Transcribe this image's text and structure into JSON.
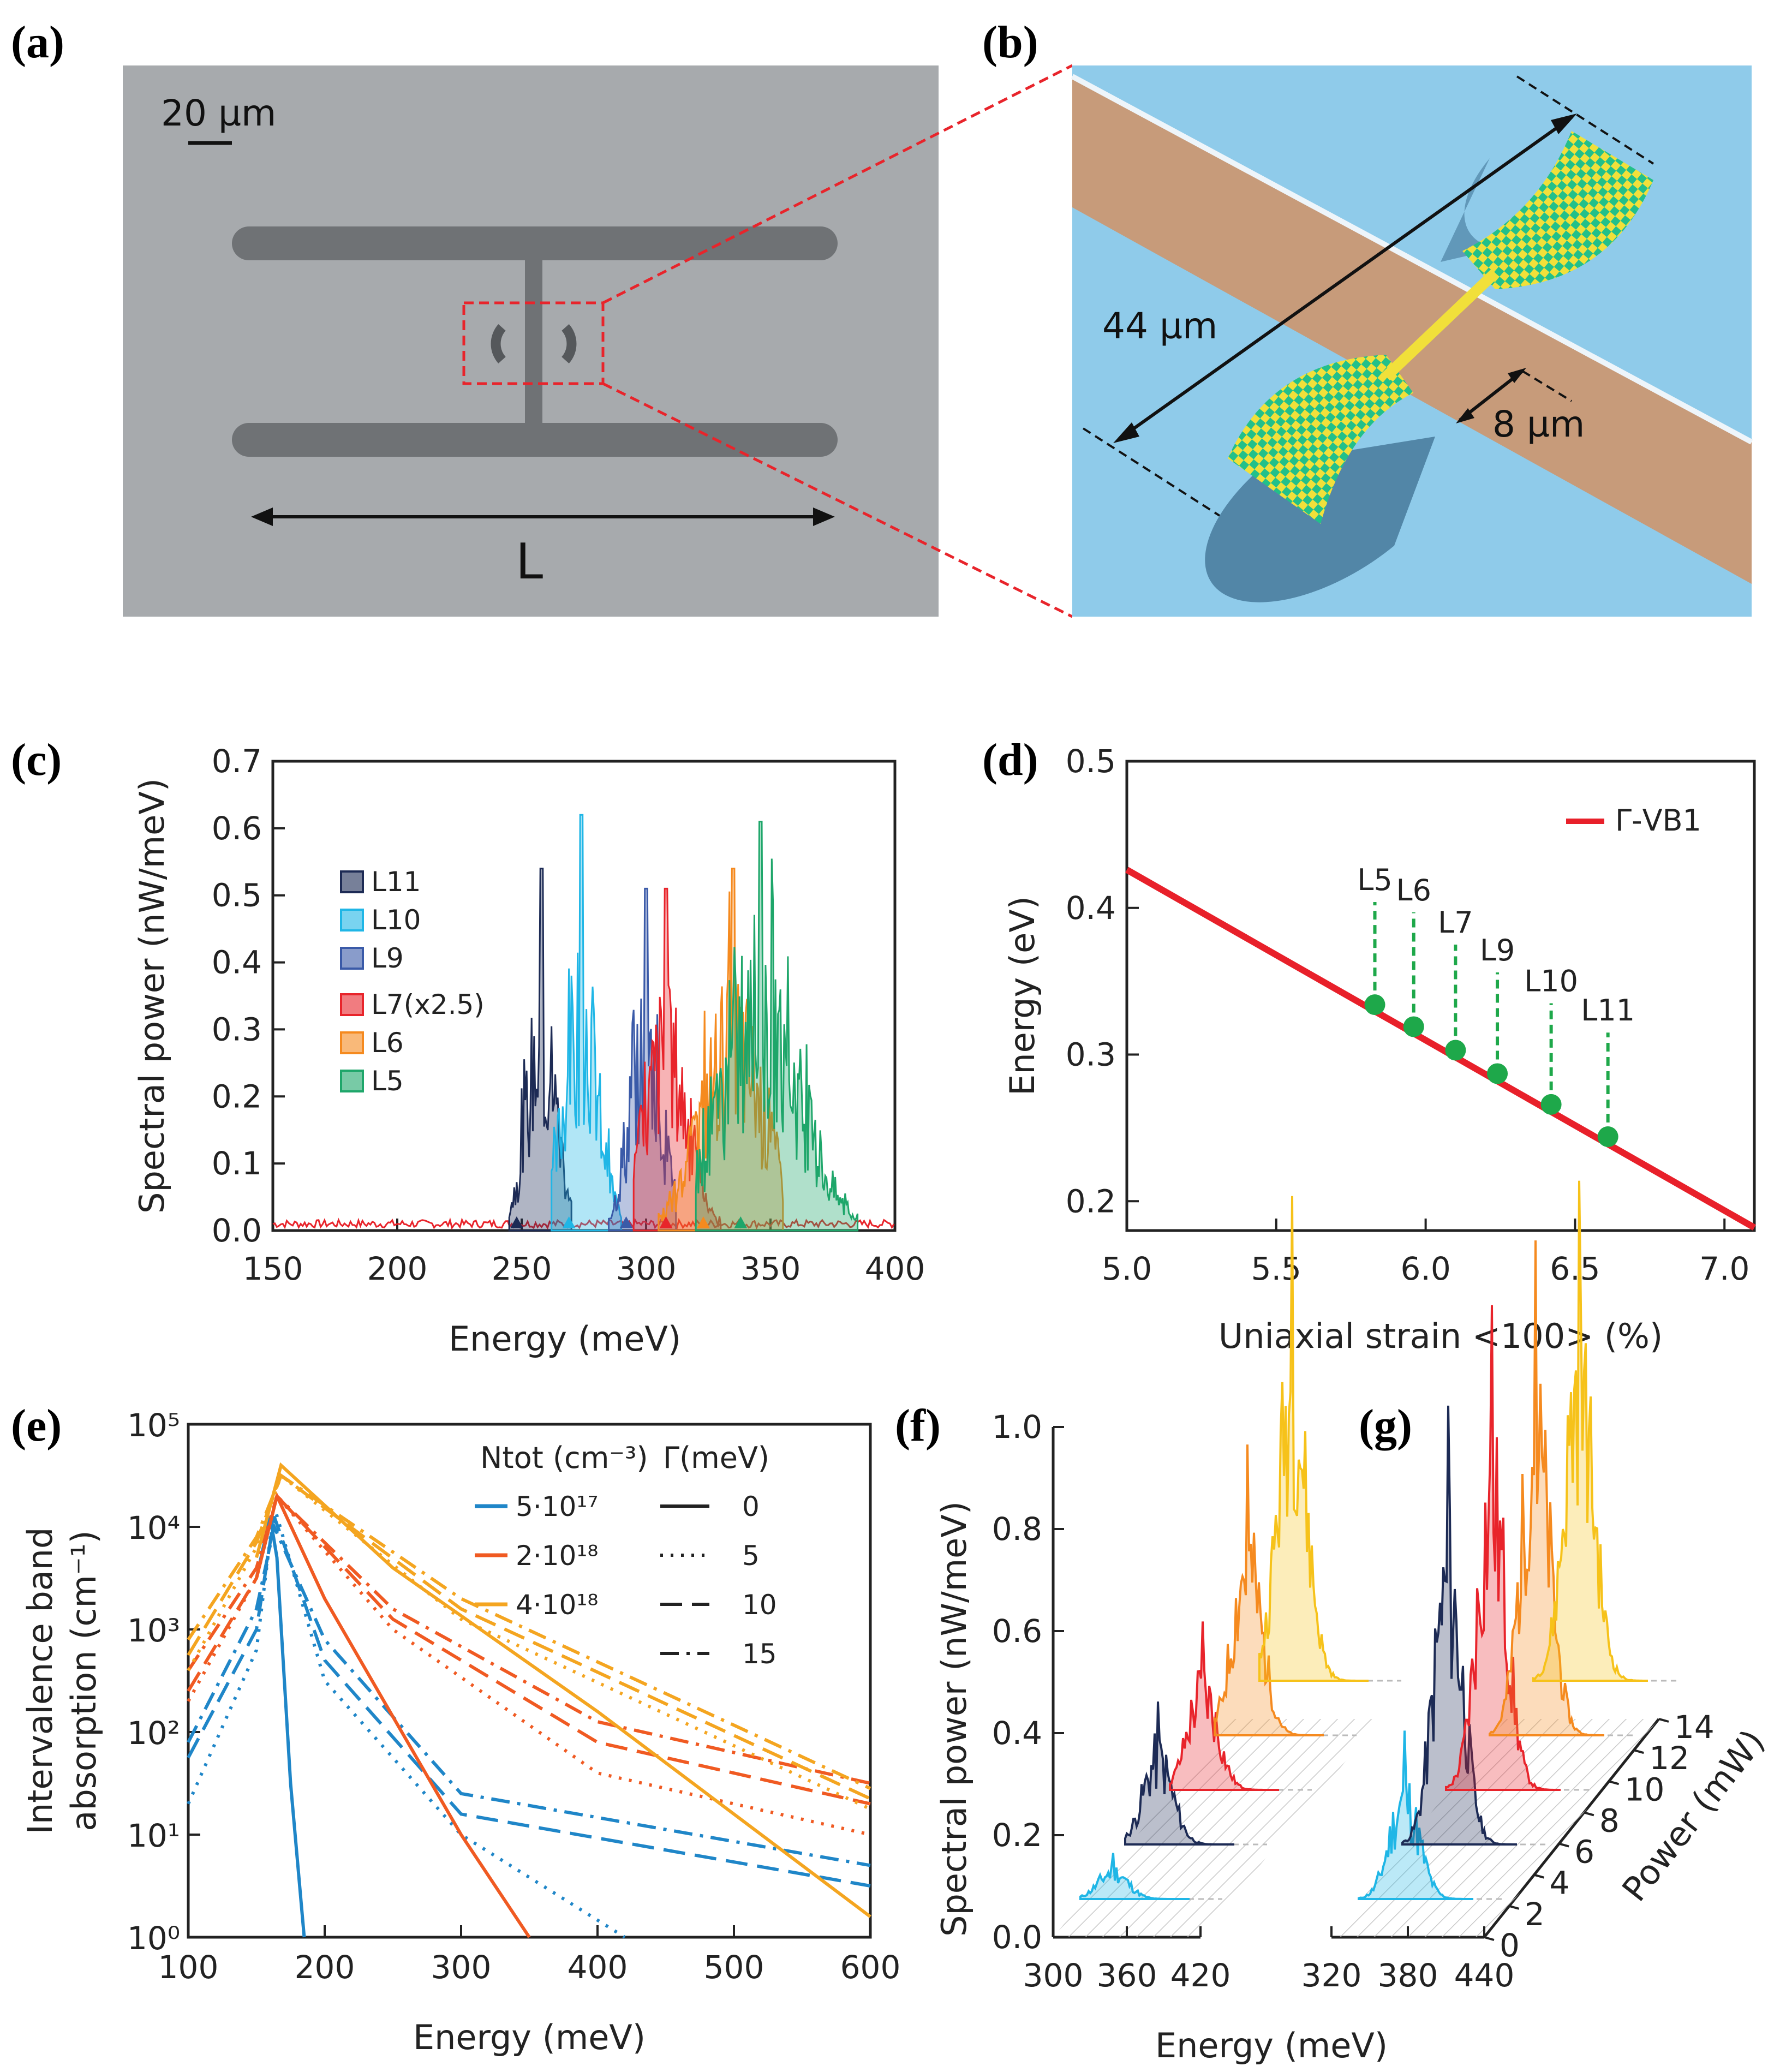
{
  "panel_labels": {
    "a": "(a)",
    "b": "(b)",
    "c": "(c)",
    "d": "(d)",
    "e": "(e)",
    "f": "(f)",
    "g": "(g)"
  },
  "colors": {
    "L11": "#1d2b55",
    "L10": "#1fb6e6",
    "L9": "#3a5aa8",
    "L7": "#e8242b",
    "L6": "#f58a1f",
    "L5": "#1ea66a",
    "red_line": "#e8202a",
    "green_dot": "#1ea84a",
    "e_blue": "#1f86c8",
    "e_red": "#f05a22",
    "e_orange": "#f4a520"
  },
  "panel_a": {
    "scale_label": "20 µm",
    "length_label": "L"
  },
  "panel_b": {
    "dim_long": "44 µm",
    "dim_short": "8 µm"
  },
  "chart_data": [
    {
      "id": "c",
      "type": "area",
      "xlabel": "Energy (meV)",
      "ylabel": "Spectral power (nW/meV)",
      "xlim": [
        150,
        400
      ],
      "ylim": [
        0,
        0.7
      ],
      "xticks": [
        "150",
        "200",
        "250",
        "300",
        "350",
        "400"
      ],
      "yticks": [
        "0.0",
        "0.1",
        "0.2",
        "0.3",
        "0.4",
        "0.5",
        "0.6",
        "0.7"
      ],
      "legend_group1": [
        "L11",
        "L10",
        "L9"
      ],
      "legend_group2": [
        "L7(x2.5)",
        "L6",
        "L5"
      ],
      "series": [
        {
          "name": "L11",
          "peak_energy": 258,
          "peak_value": 0.54,
          "range": [
            245,
            270
          ],
          "marker": 248
        },
        {
          "name": "L10",
          "peak_energy": 274,
          "peak_value": 0.62,
          "range": [
            262,
            290
          ],
          "marker": 269
        },
        {
          "name": "L9",
          "peak_energy": 300,
          "peak_value": 0.51,
          "range": [
            285,
            312
          ],
          "marker": 292
        },
        {
          "name": "L7(x2.5)",
          "peak_energy": 308,
          "peak_value": 0.51,
          "range": [
            295,
            330
          ],
          "marker": 308
        },
        {
          "name": "L6",
          "peak_energy": 335,
          "peak_value": 0.54,
          "range": [
            305,
            355
          ],
          "marker": 323
        },
        {
          "name": "L5",
          "peak_energy": 346,
          "peak_value": 0.61,
          "range": [
            320,
            385
          ],
          "marker": 338
        }
      ]
    },
    {
      "id": "d",
      "type": "line",
      "xlabel": "Uniaxial strain <100> (%)",
      "ylabel": "Energy (eV)",
      "xlim": [
        5.0,
        7.1
      ],
      "ylim": [
        0.18,
        0.5
      ],
      "xticks": [
        "5.0",
        "5.5",
        "6.0",
        "6.5",
        "7.0"
      ],
      "yticks": [
        "0.2",
        "0.3",
        "0.4",
        "0.5"
      ],
      "legend": "Γ-VB1",
      "line": {
        "x": [
          5.0,
          7.1
        ],
        "y": [
          0.426,
          0.182
        ]
      },
      "points": [
        {
          "label": "L5",
          "x": 5.83,
          "y": 0.334
        },
        {
          "label": "L6",
          "x": 5.96,
          "y": 0.319
        },
        {
          "label": "L7",
          "x": 6.1,
          "y": 0.303
        },
        {
          "label": "L9",
          "x": 6.24,
          "y": 0.287
        },
        {
          "label": "L10",
          "x": 6.42,
          "y": 0.266
        },
        {
          "label": "L11",
          "x": 6.61,
          "y": 0.244
        }
      ]
    },
    {
      "id": "e",
      "type": "line",
      "xlabel": "Energy (meV)",
      "ylabel_line1": "Intervalence band",
      "ylabel_line2": "absorption (cm⁻¹)",
      "xlim": [
        100,
        600
      ],
      "ylim_log10": [
        0,
        5
      ],
      "xticks": [
        "100",
        "200",
        "300",
        "400",
        "500",
        "600"
      ],
      "yticks": [
        "10⁰",
        "10¹",
        "10²",
        "10³",
        "10⁴",
        "10⁵"
      ],
      "legend_head1": "Ntot (cm⁻³)",
      "legend_head2": "Γ(meV)",
      "legend_density": [
        "5·10¹⁷",
        "2·10¹⁸",
        "4·10¹⁸"
      ],
      "legend_gamma": [
        "0",
        "5",
        "10",
        "15"
      ],
      "series": [
        {
          "density": "5·10¹⁷",
          "gamma": 0,
          "x": [
            150,
            160,
            165,
            175,
            185
          ],
          "log10y": [
            3.5,
            4.1,
            3.7,
            1.5,
            0
          ]
        },
        {
          "density": "5·10¹⁷",
          "gamma": 5,
          "x": [
            100,
            150,
            163,
            200,
            300,
            420
          ],
          "log10y": [
            1.3,
            2.8,
            4.2,
            2.5,
            1.0,
            0
          ]
        },
        {
          "density": "5·10¹⁷",
          "gamma": 10,
          "x": [
            100,
            150,
            163,
            200,
            300,
            600
          ],
          "log10y": [
            1.75,
            3.0,
            4.1,
            2.7,
            1.2,
            0.5
          ]
        },
        {
          "density": "5·10¹⁷",
          "gamma": 15,
          "x": [
            100,
            150,
            163,
            200,
            300,
            600
          ],
          "log10y": [
            1.9,
            3.2,
            4.0,
            2.9,
            1.4,
            0.7
          ]
        },
        {
          "density": "2·10¹⁸",
          "gamma": 0,
          "x": [
            150,
            165,
            200,
            300,
            350
          ],
          "log10y": [
            3.5,
            4.3,
            3.3,
            1.0,
            0
          ]
        },
        {
          "density": "2·10¹⁸",
          "gamma": 5,
          "x": [
            100,
            150,
            165,
            250,
            400,
            600
          ],
          "log10y": [
            2.3,
            3.5,
            4.3,
            3.0,
            1.6,
            1.0
          ]
        },
        {
          "density": "2·10¹⁸",
          "gamma": 10,
          "x": [
            100,
            150,
            165,
            250,
            400,
            600
          ],
          "log10y": [
            2.4,
            3.5,
            4.3,
            3.1,
            1.9,
            1.3
          ]
        },
        {
          "density": "2·10¹⁸",
          "gamma": 15,
          "x": [
            100,
            150,
            165,
            250,
            400,
            600
          ],
          "log10y": [
            2.6,
            3.6,
            4.3,
            3.2,
            2.1,
            1.5
          ]
        },
        {
          "density": "4·10¹⁸",
          "gamma": 0,
          "x": [
            150,
            168,
            250,
            400,
            600
          ],
          "log10y": [
            3.7,
            4.6,
            3.6,
            2.2,
            0.2
          ]
        },
        {
          "density": "4·10¹⁸",
          "gamma": 5,
          "x": [
            100,
            150,
            168,
            300,
            600
          ],
          "log10y": [
            2.6,
            3.8,
            4.5,
            3.1,
            1.25
          ]
        },
        {
          "density": "4·10¹⁸",
          "gamma": 10,
          "x": [
            100,
            150,
            168,
            300,
            600
          ],
          "log10y": [
            2.75,
            3.85,
            4.5,
            3.2,
            1.35
          ]
        },
        {
          "density": "4·10¹⁸",
          "gamma": 15,
          "x": [
            100,
            150,
            168,
            300,
            600
          ],
          "log10y": [
            2.9,
            3.9,
            4.5,
            3.3,
            1.45
          ]
        }
      ]
    },
    {
      "id": "f",
      "type": "area",
      "xlabel": "Energy (meV)",
      "ylabel": "Spectral power (nW/meV)",
      "ylim": [
        0,
        1.0
      ],
      "yticks": [
        "0.0",
        "0.2",
        "0.4",
        "0.6",
        "0.8",
        "1.0"
      ],
      "xticks": [
        "300",
        "360",
        "420"
      ],
      "series": [
        {
          "power": 0,
          "peak": 0.09,
          "color": "#1fb6e6"
        },
        {
          "power": 4,
          "peak": 0.28,
          "color": "#1d2b55"
        },
        {
          "power": 6,
          "peak": 0.33,
          "color": "#e8242b"
        },
        {
          "power": 8,
          "peak": 0.57,
          "color": "#f58a1f"
        },
        {
          "power": 12,
          "peak": 0.95,
          "color": "#f6c21a"
        }
      ]
    },
    {
      "id": "g",
      "type": "area",
      "xlabel": "Energy (meV)",
      "zlabel": "Power (mW)",
      "xticks": [
        "320",
        "380",
        "440"
      ],
      "zticks": [
        "0",
        "2",
        "4",
        "6",
        "8",
        "10",
        "12",
        "14"
      ],
      "series": [
        {
          "power": 0,
          "peak": 0.33,
          "color": "#1fb6e6"
        },
        {
          "power": 4,
          "peak": 0.86,
          "color": "#1d2b55"
        },
        {
          "power": 8,
          "peak": 0.95,
          "color": "#e8242b"
        },
        {
          "power": 10,
          "peak": 0.97,
          "color": "#f58a1f"
        },
        {
          "power": 12,
          "peak": 0.98,
          "color": "#f6c21a"
        }
      ]
    }
  ]
}
